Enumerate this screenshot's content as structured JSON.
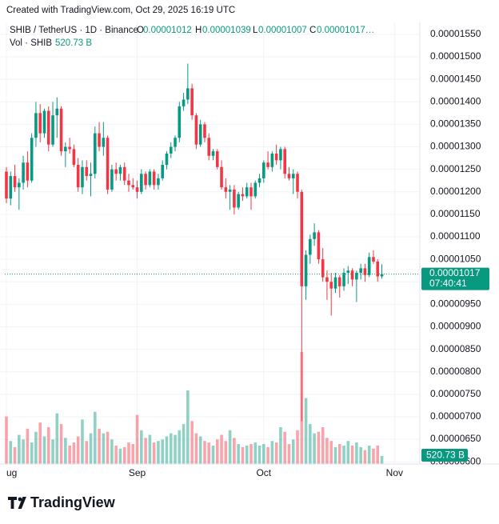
{
  "caption": "Created with TradingView.com, Oct 29, 2025 16:19 UTC",
  "brand": "TradingView",
  "chart_data": {
    "type": "candlestick",
    "header": {
      "symbol": "SHIB / TetherUS · 1D · Binance",
      "o_key": "O",
      "o": "0.00001012",
      "h_key": "H",
      "h": "0.00001039",
      "l_key": "L",
      "l": "0.00001007",
      "c_key": "C",
      "c": "0.00001017…",
      "vol_key": "Vol · SHIB",
      "vol": "520.73 B"
    },
    "last_price_label": "0.00001017",
    "countdown": "07:40:41",
    "volume_label": "520.73 B",
    "up_color": "#089981",
    "down_color": "#f23645",
    "grid": true,
    "x": [
      0,
      1,
      2,
      3,
      4,
      5,
      6,
      7,
      8,
      9,
      10,
      11,
      12,
      13,
      14,
      15,
      16,
      17,
      18,
      19,
      20,
      21,
      22,
      23,
      24,
      25,
      26,
      27,
      28,
      29,
      30,
      31,
      32,
      33,
      34,
      35,
      36,
      37,
      38,
      39,
      40,
      41,
      42,
      43,
      44,
      45,
      46,
      47,
      48,
      49,
      50,
      51,
      52,
      53,
      54,
      55,
      56,
      57,
      58,
      59,
      60,
      61,
      62,
      63,
      64,
      65,
      66,
      67,
      68,
      69,
      70,
      71,
      72,
      73,
      74,
      75,
      76,
      77,
      78,
      79,
      80,
      81,
      82,
      83,
      84,
      85,
      86,
      87,
      88,
      89
    ],
    "xlim": [
      0,
      98
    ],
    "xticks": [
      {
        "value": 0,
        "label": "ug"
      },
      {
        "value": 31,
        "label": "Sep"
      },
      {
        "value": 61,
        "label": "Oct"
      },
      {
        "value": 92,
        "label": "Nov"
      }
    ],
    "open": [
      1.245e-05,
      1.185e-05,
      1.235e-05,
      1.21e-05,
      1.22e-05,
      1.265e-05,
      1.225e-05,
      1.32e-05,
      1.375e-05,
      1.33e-05,
      1.38e-05,
      1.305e-05,
      1.37e-05,
      1.385e-05,
      1.29e-05,
      1.3e-05,
      1.295e-05,
      1.26e-05,
      1.21e-05,
      1.255e-05,
      1.235e-05,
      1.24e-05,
      1.33e-05,
      1.3e-05,
      1.32e-05,
      1.205e-05,
      1.25e-05,
      1.24e-05,
      1.255e-05,
      1.225e-05,
      1.215e-05,
      1.21e-05,
      1.2e-05,
      1.24e-05,
      1.215e-05,
      1.245e-05,
      1.215e-05,
      1.23e-05,
      1.26e-05,
      1.285e-05,
      1.3e-05,
      1.32e-05,
      1.39e-05,
      1.405e-05,
      1.43e-05,
      1.37e-05,
      1.305e-05,
      1.35e-05,
      1.32e-05,
      1.28e-05,
      1.29e-05,
      1.255e-05,
      1.21e-05,
      1.2e-05,
      1.205e-05,
      1.165e-05,
      1.195e-05,
      1.19e-05,
      1.21e-05,
      1.19e-05,
      1.22e-05,
      1.23e-05,
      1.265e-05,
      1.255e-05,
      1.285e-05,
      1.27e-05,
      1.295e-05,
      1.24e-05,
      1.23e-05,
      1.24e-05,
      1.2e-05,
      9.9e-06,
      1.06e-05,
      1.095e-05,
      1.11e-05,
      1.05e-05,
      1.01e-05,
      1e-05,
      9.85e-06,
      1.01e-05,
      9.9e-06,
      1.02e-05,
      1.025e-05,
      1.005e-05,
      1.02e-05,
      1.03e-05,
      1.015e-05,
      1.055e-05,
      1.045e-05,
      1.012e-05
    ],
    "high": [
      1.255e-05,
      1.245e-05,
      1.26e-05,
      1.23e-05,
      1.28e-05,
      1.29e-05,
      1.33e-05,
      1.4e-05,
      1.395e-05,
      1.385e-05,
      1.39e-05,
      1.4e-05,
      1.41e-05,
      1.39e-05,
      1.31e-05,
      1.32e-05,
      1.305e-05,
      1.275e-05,
      1.27e-05,
      1.27e-05,
      1.265e-05,
      1.345e-05,
      1.355e-05,
      1.355e-05,
      1.325e-05,
      1.26e-05,
      1.265e-05,
      1.26e-05,
      1.265e-05,
      1.24e-05,
      1.23e-05,
      1.225e-05,
      1.25e-05,
      1.245e-05,
      1.25e-05,
      1.25e-05,
      1.24e-05,
      1.27e-05,
      1.29e-05,
      1.31e-05,
      1.325e-05,
      1.4e-05,
      1.42e-05,
      1.485e-05,
      1.44e-05,
      1.375e-05,
      1.36e-05,
      1.355e-05,
      1.33e-05,
      1.295e-05,
      1.295e-05,
      1.27e-05,
      1.23e-05,
      1.215e-05,
      1.215e-05,
      1.2e-05,
      1.21e-05,
      1.22e-05,
      1.22e-05,
      1.225e-05,
      1.24e-05,
      1.27e-05,
      1.29e-05,
      1.29e-05,
      1.305e-05,
      1.3e-05,
      1.3e-05,
      1.255e-05,
      1.25e-05,
      1.245e-05,
      1.205e-05,
      1.07e-05,
      1.105e-05,
      1.13e-05,
      1.115e-05,
      1.075e-05,
      1.025e-05,
      1.02e-05,
      1.02e-05,
      1.015e-05,
      1.03e-05,
      1.035e-05,
      1.03e-05,
      1.025e-05,
      1.04e-05,
      1.04e-05,
      1.065e-05,
      1.07e-05,
      1.05e-05,
      1.039e-05
    ],
    "low": [
      1.175e-05,
      1.17e-05,
      1.2e-05,
      1.16e-05,
      1.205e-05,
      1.21e-05,
      1.22e-05,
      1.3e-05,
      1.31e-05,
      1.32e-05,
      1.29e-05,
      1.3e-05,
      1.32e-05,
      1.28e-05,
      1.255e-05,
      1.285e-05,
      1.255e-05,
      1.2e-05,
      1.195e-05,
      1.225e-05,
      1.19e-05,
      1.23e-05,
      1.29e-05,
      1.28e-05,
      1.195e-05,
      1.2e-05,
      1.225e-05,
      1.225e-05,
      1.215e-05,
      1.2e-05,
      1.205e-05,
      1.185e-05,
      1.195e-05,
      1.205e-05,
      1.21e-05,
      1.205e-05,
      1.205e-05,
      1.225e-05,
      1.25e-05,
      1.275e-05,
      1.29e-05,
      1.31e-05,
      1.38e-05,
      1.395e-05,
      1.36e-05,
      1.295e-05,
      1.3e-05,
      1.31e-05,
      1.27e-05,
      1.27e-05,
      1.25e-05,
      1.205e-05,
      1.185e-05,
      1.16e-05,
      1.15e-05,
      1.16e-05,
      1.18e-05,
      1.185e-05,
      1.16e-05,
      1.185e-05,
      1.21e-05,
      1.22e-05,
      1.25e-05,
      1.245e-05,
      1.26e-05,
      1.25e-05,
      1.23e-05,
      1.225e-05,
      1.195e-05,
      1.185e-05,
      6.9e-06,
      9.6e-06,
      1.04e-05,
      1.08e-05,
      1.04e-05,
      1e-05,
      9.6e-06,
      9.25e-06,
      9.75e-06,
      9.65e-06,
      9.8e-06,
      9.95e-06,
      9.9e-06,
      9.55e-06,
      1.005e-05,
      1e-05,
      1.01e-05,
      1.04e-05,
      1e-05,
      1.007e-05
    ],
    "close": [
      1.185e-05,
      1.235e-05,
      1.21e-05,
      1.22e-05,
      1.265e-05,
      1.225e-05,
      1.32e-05,
      1.375e-05,
      1.33e-05,
      1.38e-05,
      1.305e-05,
      1.37e-05,
      1.385e-05,
      1.29e-05,
      1.3e-05,
      1.295e-05,
      1.26e-05,
      1.21e-05,
      1.255e-05,
      1.235e-05,
      1.24e-05,
      1.33e-05,
      1.3e-05,
      1.32e-05,
      1.205e-05,
      1.25e-05,
      1.24e-05,
      1.255e-05,
      1.225e-05,
      1.215e-05,
      1.21e-05,
      1.2e-05,
      1.24e-05,
      1.215e-05,
      1.245e-05,
      1.215e-05,
      1.23e-05,
      1.26e-05,
      1.285e-05,
      1.3e-05,
      1.32e-05,
      1.39e-05,
      1.405e-05,
      1.43e-05,
      1.37e-05,
      1.305e-05,
      1.35e-05,
      1.32e-05,
      1.28e-05,
      1.29e-05,
      1.255e-05,
      1.21e-05,
      1.2e-05,
      1.205e-05,
      1.165e-05,
      1.195e-05,
      1.19e-05,
      1.21e-05,
      1.19e-05,
      1.22e-05,
      1.23e-05,
      1.265e-05,
      1.255e-05,
      1.285e-05,
      1.27e-05,
      1.295e-05,
      1.24e-05,
      1.23e-05,
      1.24e-05,
      1.2e-05,
      9.9e-06,
      1.06e-05,
      1.095e-05,
      1.11e-05,
      1.05e-05,
      1.01e-05,
      1e-05,
      9.85e-06,
      1.01e-05,
      9.9e-06,
      1.02e-05,
      1.025e-05,
      1.005e-05,
      1.02e-05,
      1.03e-05,
      1.015e-05,
      1.055e-05,
      1.045e-05,
      1.012e-05,
      1.017e-05
    ],
    "volume": [
      3100,
      1500,
      1100,
      1900,
      1600,
      2300,
      1400,
      2100,
      2700,
      1800,
      2400,
      1600,
      3300,
      2600,
      1700,
      1200,
      1400,
      1800,
      2900,
      1500,
      2000,
      3400,
      2300,
      2000,
      2100,
      1600,
      1200,
      1000,
      1100,
      1400,
      1300,
      3200,
      2200,
      1700,
      1900,
      1400,
      1500,
      1600,
      1800,
      2000,
      1900,
      2200,
      2600,
      4800,
      2800,
      2000,
      1800,
      1500,
      1400,
      1200,
      1600,
      1900,
      1500,
      2200,
      1700,
      1300,
      1100,
      1200,
      1300,
      1400,
      1200,
      1300,
      1100,
      1500,
      1400,
      2400,
      2100,
      1300,
      1600,
      2200,
      7300,
      4300,
      2600,
      2000,
      2100,
      2400,
      1700,
      1500,
      1100,
      1300,
      1200,
      1500,
      1200,
      1400,
      1100,
      900,
      1200,
      1000,
      1200,
      520.73
    ],
    "ylim": [
      5.95e-06,
      1.573e-05
    ],
    "yticks": [
      {
        "value": 1.55e-05,
        "label": "0.00001550"
      },
      {
        "value": 1.5e-05,
        "label": "0.00001500"
      },
      {
        "value": 1.45e-05,
        "label": "0.00001450"
      },
      {
        "value": 1.4e-05,
        "label": "0.00001400"
      },
      {
        "value": 1.35e-05,
        "label": "0.00001350"
      },
      {
        "value": 1.3e-05,
        "label": "0.00001300"
      },
      {
        "value": 1.25e-05,
        "label": "0.00001250"
      },
      {
        "value": 1.2e-05,
        "label": "0.00001200"
      },
      {
        "value": 1.15e-05,
        "label": "0.00001150"
      },
      {
        "value": 1.1e-05,
        "label": "0.00001100"
      },
      {
        "value": 1.05e-05,
        "label": "0.00001050"
      },
      {
        "value": 1e-05,
        "label": "0.00001000"
      },
      {
        "value": 9.5e-06,
        "label": "0.00000950"
      },
      {
        "value": 9e-06,
        "label": "0.00000900"
      },
      {
        "value": 8.5e-06,
        "label": "0.00000850"
      },
      {
        "value": 8e-06,
        "label": "0.00000800"
      },
      {
        "value": 7.5e-06,
        "label": "0.00000750"
      },
      {
        "value": 7e-06,
        "label": "0.00000700"
      },
      {
        "value": 6.5e-06,
        "label": "0.00000650"
      },
      {
        "value": 6e-06,
        "label": "0.00000600"
      }
    ]
  }
}
